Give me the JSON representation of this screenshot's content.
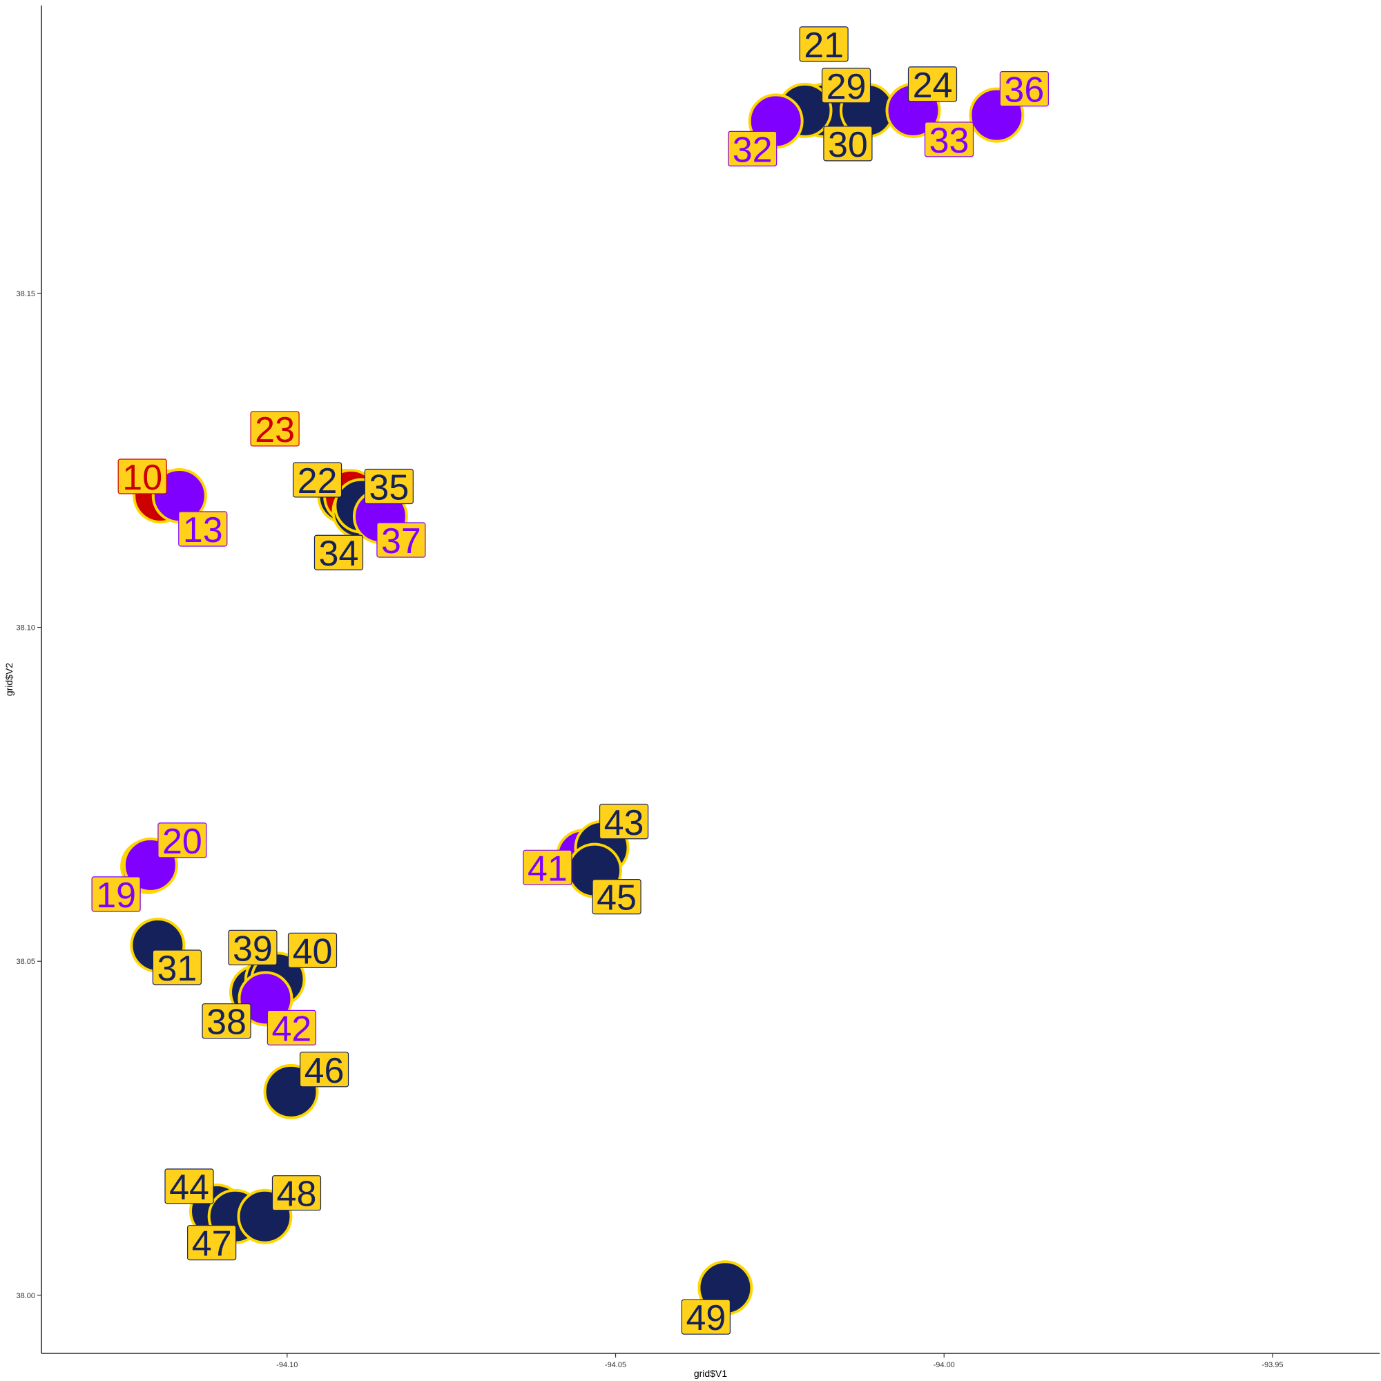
{
  "chart_data": {
    "type": "scatter",
    "title": "",
    "xlabel": "grid$V1",
    "ylabel": "grid$V2",
    "xlim": [
      -94.1374,
      -93.9337
    ],
    "ylim": [
      37.9913,
      38.1931
    ],
    "x_ticks": [
      "-94.10",
      "-94.05",
      "-94.00",
      "-93.95"
    ],
    "x_tick_values": [
      -94.1,
      -94.05,
      -94.0,
      -93.95
    ],
    "y_ticks": [
      "38.00",
      "38.05",
      "38.10",
      "38.15"
    ],
    "y_tick_values": [
      38.0,
      38.05,
      38.1,
      38.15
    ],
    "grid": false,
    "colors": {
      "navy": "#15215A",
      "purple": "#8000FF",
      "red": "#CC0000",
      "outline": "#FFD700",
      "label_fill": "#FFD11A"
    },
    "points": [
      {
        "label": "10",
        "x": -94.1193,
        "y": 38.1197,
        "color": "red"
      },
      {
        "label": "13",
        "x": -94.1164,
        "y": 38.1197,
        "color": "purple"
      },
      {
        "label": "19",
        "x": -94.1212,
        "y": 38.0642,
        "color": "purple"
      },
      {
        "label": "20",
        "x": -94.1208,
        "y": 38.0644,
        "color": "purple"
      },
      {
        "label": "21",
        "x": -94.0183,
        "y": 38.1774,
        "color": "navy"
      },
      {
        "label": "22",
        "x": -94.0912,
        "y": 38.1196,
        "color": "navy"
      },
      {
        "label": "23",
        "x": -94.0903,
        "y": 38.1196,
        "color": "red"
      },
      {
        "label": "24",
        "x": -94.0047,
        "y": 38.1774,
        "color": "navy"
      },
      {
        "label": "29",
        "x": -94.0212,
        "y": 38.1774,
        "color": "navy"
      },
      {
        "label": "30",
        "x": -94.0117,
        "y": 38.1774,
        "color": "navy"
      },
      {
        "label": "31",
        "x": -94.1197,
        "y": 38.0524,
        "color": "navy"
      },
      {
        "label": "32",
        "x": -94.0256,
        "y": 38.1758,
        "color": "purple"
      },
      {
        "label": "33",
        "x": -94.0047,
        "y": 38.1774,
        "color": "purple"
      },
      {
        "label": "34",
        "x": -94.089,
        "y": 38.1174,
        "color": "navy"
      },
      {
        "label": "35",
        "x": -94.0887,
        "y": 38.1182,
        "color": "navy"
      },
      {
        "label": "36",
        "x": -93.992,
        "y": 38.1767,
        "color": "purple"
      },
      {
        "label": "37",
        "x": -94.0858,
        "y": 38.1166,
        "color": "purple"
      },
      {
        "label": "38",
        "x": -94.1046,
        "y": 38.0454,
        "color": "navy"
      },
      {
        "label": "39",
        "x": -94.1023,
        "y": 38.0473,
        "color": "navy"
      },
      {
        "label": "40",
        "x": -94.1014,
        "y": 38.0473,
        "color": "navy"
      },
      {
        "label": "41",
        "x": -94.0549,
        "y": 38.0657,
        "color": "purple"
      },
      {
        "label": "42",
        "x": -94.1033,
        "y": 38.0444,
        "color": "purple"
      },
      {
        "label": "43",
        "x": -94.0521,
        "y": 38.067,
        "color": "navy"
      },
      {
        "label": "44",
        "x": -94.1107,
        "y": 38.0126,
        "color": "navy"
      },
      {
        "label": "45",
        "x": -94.0532,
        "y": 38.0636,
        "color": "navy"
      },
      {
        "label": "46",
        "x": -94.0994,
        "y": 38.0305,
        "color": "navy"
      },
      {
        "label": "47",
        "x": -94.1079,
        "y": 38.0118,
        "color": "navy"
      },
      {
        "label": "48",
        "x": -94.1034,
        "y": 38.0118,
        "color": "navy"
      },
      {
        "label": "49",
        "x": -94.0333,
        "y": 38.0011,
        "color": "navy"
      }
    ]
  }
}
